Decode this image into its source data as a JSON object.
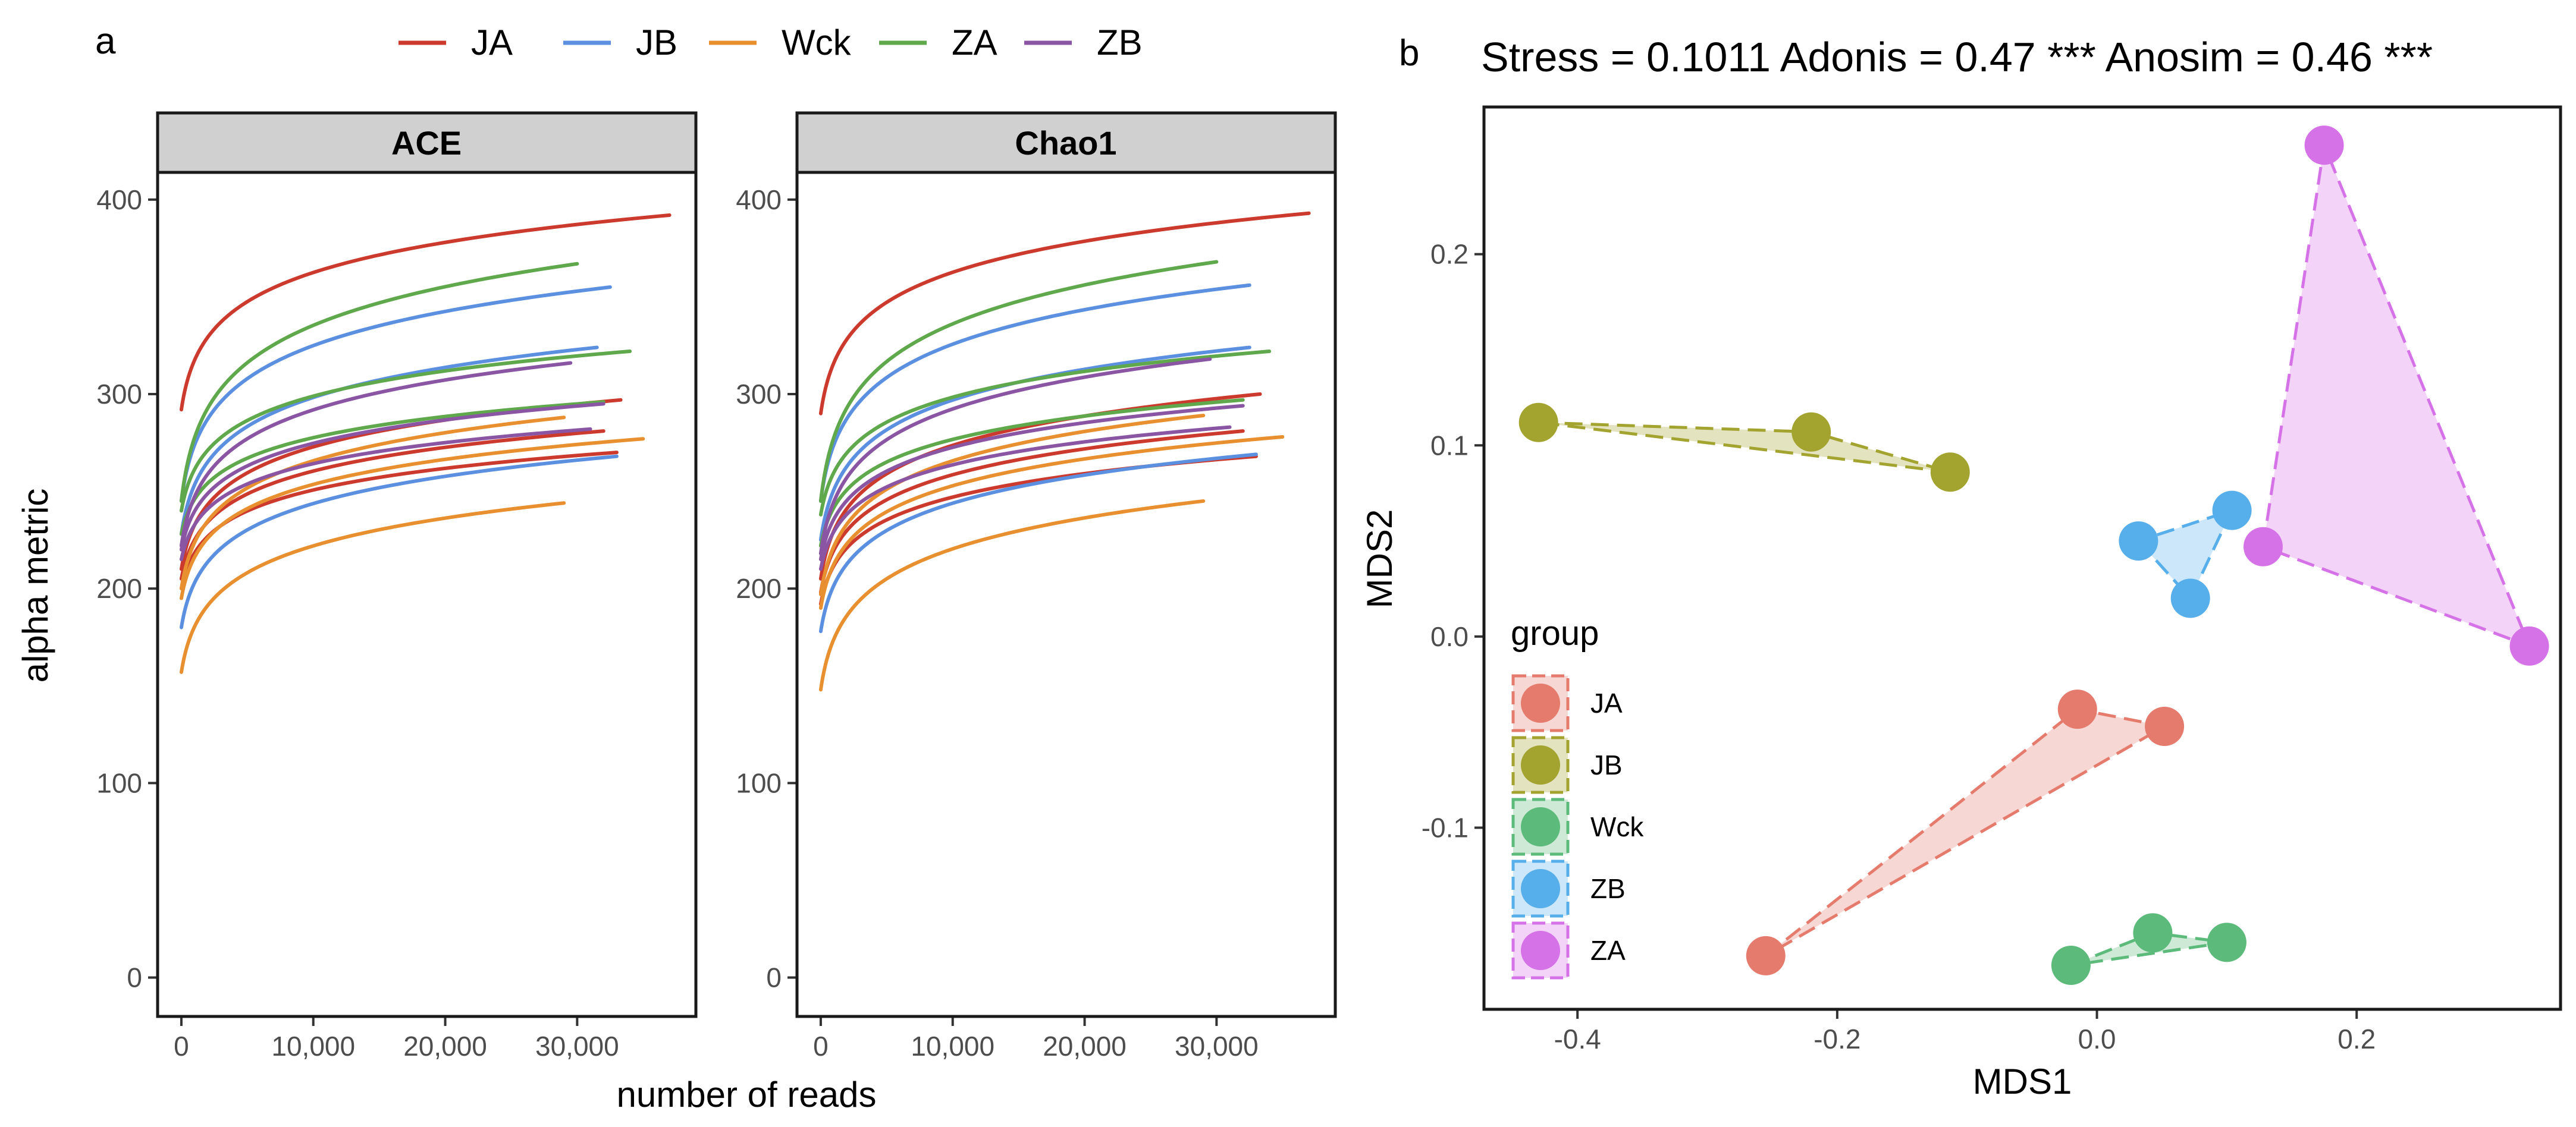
{
  "figure": {
    "panel_a_letter": "a",
    "panel_b_letter": "b",
    "colors": {
      "JA": "#cc3a2e",
      "JB": "#5b8fe0",
      "Wck": "#e8902f",
      "ZA": "#5fa84c",
      "ZB": "#8a55a3",
      "b_JA": "#e57b6d",
      "b_JB": "#a3a330",
      "b_Wck": "#5cba7a",
      "b_ZB": "#56aeea",
      "b_ZA": "#d672e8"
    }
  },
  "chart_data": [
    {
      "type": "line",
      "id": "ace",
      "title": "ACE",
      "xlabel": "number of reads",
      "ylabel": "alpha metric",
      "xlim": [
        -1800,
        39000
      ],
      "ylim": [
        -20,
        414
      ],
      "xticks": [
        0,
        10000,
        20000,
        30000
      ],
      "xtick_labels": [
        "0",
        "10,000",
        "20,000",
        "30,000"
      ],
      "yticks": [
        0,
        100,
        200,
        300,
        400
      ],
      "ytick_labels": [
        "0",
        "100",
        "200",
        "300",
        "400"
      ],
      "legend": [
        {
          "name": "JA",
          "color_key": "JA"
        },
        {
          "name": "JB",
          "color_key": "JB"
        },
        {
          "name": "Wck",
          "color_key": "Wck"
        },
        {
          "name": "ZA",
          "color_key": "ZA"
        },
        {
          "name": "ZB",
          "color_key": "ZB"
        }
      ],
      "series": [
        {
          "name": "JA",
          "y0": 292,
          "y_end": 392,
          "x_end": 37000
        },
        {
          "name": "JA",
          "y0": 210,
          "y_end": 297,
          "x_end": 33300
        },
        {
          "name": "JA",
          "y0": 205,
          "y_end": 281,
          "x_end": 32000
        },
        {
          "name": "JA",
          "y0": 200,
          "y_end": 270,
          "x_end": 33000
        },
        {
          "name": "JB",
          "y0": 245,
          "y_end": 355,
          "x_end": 32500
        },
        {
          "name": "JB",
          "y0": 228,
          "y_end": 324,
          "x_end": 31500
        },
        {
          "name": "JB",
          "y0": 180,
          "y_end": 268,
          "x_end": 33000
        },
        {
          "name": "Wck",
          "y0": 200,
          "y_end": 288,
          "x_end": 29000
        },
        {
          "name": "Wck",
          "y0": 195,
          "y_end": 277,
          "x_end": 35000
        },
        {
          "name": "Wck",
          "y0": 157,
          "y_end": 244,
          "x_end": 29000
        },
        {
          "name": "ZA",
          "y0": 245,
          "y_end": 367,
          "x_end": 30000
        },
        {
          "name": "ZA",
          "y0": 240,
          "y_end": 322,
          "x_end": 34000
        },
        {
          "name": "ZA",
          "y0": 228,
          "y_end": 296,
          "x_end": 32000
        },
        {
          "name": "ZB",
          "y0": 222,
          "y_end": 316,
          "x_end": 29500
        },
        {
          "name": "ZB",
          "y0": 220,
          "y_end": 295,
          "x_end": 32000
        },
        {
          "name": "ZB",
          "y0": 215,
          "y_end": 282,
          "x_end": 31000
        }
      ]
    },
    {
      "type": "line",
      "id": "chao1",
      "title": "Chao1",
      "xlabel": "number of reads",
      "ylabel": "alpha metric",
      "xlim": [
        -1800,
        39000
      ],
      "ylim": [
        -20,
        414
      ],
      "xticks": [
        0,
        10000,
        20000,
        30000
      ],
      "xtick_labels": [
        "0",
        "10,000",
        "20,000",
        "30,000"
      ],
      "yticks": [
        0,
        100,
        200,
        300,
        400
      ],
      "ytick_labels": [
        "0",
        "100",
        "200",
        "300",
        "400"
      ],
      "series": [
        {
          "name": "JA",
          "y0": 290,
          "y_end": 393,
          "x_end": 37000
        },
        {
          "name": "JA",
          "y0": 205,
          "y_end": 300,
          "x_end": 33300
        },
        {
          "name": "JA",
          "y0": 198,
          "y_end": 281,
          "x_end": 32000
        },
        {
          "name": "JA",
          "y0": 192,
          "y_end": 268,
          "x_end": 33000
        },
        {
          "name": "JB",
          "y0": 245,
          "y_end": 356,
          "x_end": 32500
        },
        {
          "name": "JB",
          "y0": 225,
          "y_end": 324,
          "x_end": 32500
        },
        {
          "name": "JB",
          "y0": 178,
          "y_end": 269,
          "x_end": 33000
        },
        {
          "name": "Wck",
          "y0": 197,
          "y_end": 289,
          "x_end": 29000
        },
        {
          "name": "Wck",
          "y0": 190,
          "y_end": 278,
          "x_end": 35000
        },
        {
          "name": "Wck",
          "y0": 148,
          "y_end": 245,
          "x_end": 29000
        },
        {
          "name": "ZA",
          "y0": 245,
          "y_end": 368,
          "x_end": 30000
        },
        {
          "name": "ZA",
          "y0": 238,
          "y_end": 322,
          "x_end": 34000
        },
        {
          "name": "ZA",
          "y0": 222,
          "y_end": 297,
          "x_end": 32000
        },
        {
          "name": "ZB",
          "y0": 218,
          "y_end": 318,
          "x_end": 29500
        },
        {
          "name": "ZB",
          "y0": 215,
          "y_end": 294,
          "x_end": 32000
        },
        {
          "name": "ZB",
          "y0": 210,
          "y_end": 283,
          "x_end": 31000
        }
      ]
    },
    {
      "type": "scatter",
      "id": "nmds",
      "title": "Stress  = 0.1011 Adonis  = 0.47 *** Anosim  = 0.46 ***",
      "xlabel": "MDS1",
      "ylabel": "MDS2",
      "xlim": [
        -0.472,
        0.357
      ],
      "ylim": [
        -0.195,
        0.277
      ],
      "xticks": [
        -0.4,
        -0.2,
        0.0,
        0.2
      ],
      "xtick_labels": [
        "-0.4",
        "-0.2",
        "0.0",
        "0.2"
      ],
      "yticks": [
        -0.1,
        0.0,
        0.1,
        0.2
      ],
      "ytick_labels": [
        "-0.1",
        "0.0",
        "0.1",
        "0.2"
      ],
      "legend_title": "group",
      "legend_position": "bottom-left",
      "groups": [
        {
          "name": "JA",
          "color_key": "b_JA",
          "points": [
            [
              -0.255,
              -0.167
            ],
            [
              -0.015,
              -0.038
            ],
            [
              0.052,
              -0.047
            ]
          ]
        },
        {
          "name": "JB",
          "color_key": "b_JB",
          "points": [
            [
              -0.43,
              0.112
            ],
            [
              -0.22,
              0.107
            ],
            [
              -0.113,
              0.086
            ]
          ]
        },
        {
          "name": "Wck",
          "color_key": "b_Wck",
          "points": [
            [
              -0.02,
              -0.172
            ],
            [
              0.043,
              -0.155
            ],
            [
              0.1,
              -0.16
            ]
          ]
        },
        {
          "name": "ZB",
          "color_key": "b_ZB",
          "points": [
            [
              0.032,
              0.05
            ],
            [
              0.072,
              0.02
            ],
            [
              0.104,
              0.066
            ]
          ]
        },
        {
          "name": "ZA",
          "color_key": "b_ZA",
          "points": [
            [
              0.128,
              0.047
            ],
            [
              0.175,
              0.257
            ],
            [
              0.333,
              -0.005
            ]
          ]
        }
      ]
    }
  ]
}
